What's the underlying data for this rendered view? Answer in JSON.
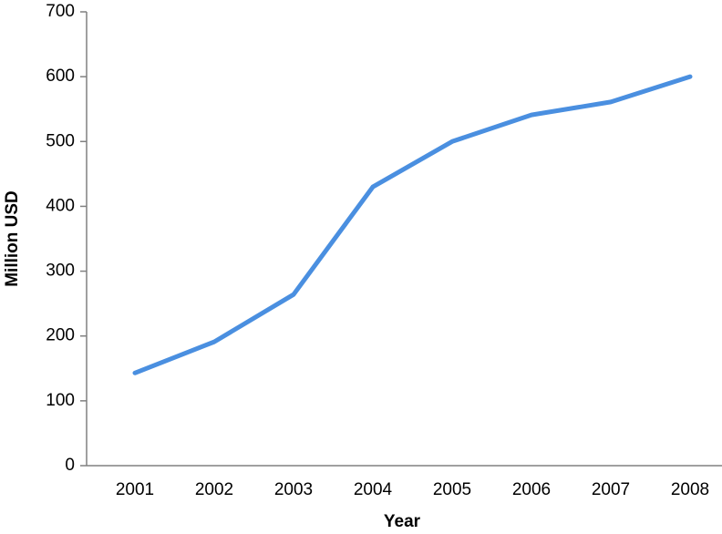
{
  "chart_data": {
    "type": "line",
    "x_label": "Year",
    "y_label": "Million USD",
    "categories": [
      "2001",
      "2002",
      "2003",
      "2004",
      "2005",
      "2006",
      "2007",
      "2008"
    ],
    "values": [
      143,
      191,
      264,
      430,
      500,
      541,
      561,
      600
    ],
    "color": "#4a8fe0",
    "ylim": [
      0,
      700
    ],
    "yticks": [
      0,
      100,
      200,
      300,
      400,
      500,
      600,
      700
    ],
    "grid": false
  }
}
